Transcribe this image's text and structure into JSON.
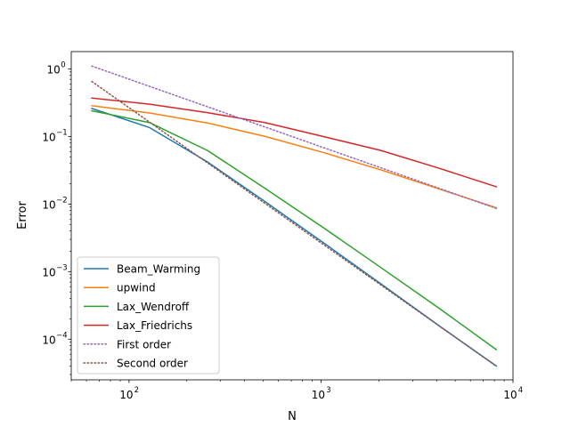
{
  "chart_data": {
    "type": "line",
    "title": "",
    "xlabel": "N",
    "ylabel": "Error",
    "xscale": "log",
    "yscale": "log",
    "xlim": [
      50,
      10000
    ],
    "ylim": [
      2.5e-05,
      1.8
    ],
    "xticks": [
      {
        "value": 100,
        "base": "10",
        "exp": "2"
      },
      {
        "value": 1000,
        "base": "10",
        "exp": "3"
      },
      {
        "value": 10000,
        "base": "10",
        "exp": "4"
      }
    ],
    "yticks": [
      {
        "value": 0.0001,
        "base": "10",
        "exp": "−4"
      },
      {
        "value": 0.001,
        "base": "10",
        "exp": "−3"
      },
      {
        "value": 0.01,
        "base": "10",
        "exp": "−2"
      },
      {
        "value": 0.1,
        "base": "10",
        "exp": "−1"
      },
      {
        "value": 1,
        "base": "10",
        "exp": "0"
      }
    ],
    "grid": false,
    "legend_position": "lower-left",
    "x": [
      64,
      128,
      256,
      512,
      1024,
      2048,
      4096,
      8192
    ],
    "series": [
      {
        "name": "Beam_Warming",
        "color": "#1f77b4",
        "style": "solid",
        "values": [
          0.26,
          0.135,
          0.042,
          0.0108,
          0.0027,
          0.00066,
          0.00016,
          4e-05
        ]
      },
      {
        "name": "upwind",
        "color": "#ff7f0e",
        "style": "solid",
        "values": [
          0.285,
          0.222,
          0.158,
          0.1,
          0.058,
          0.032,
          0.0168,
          0.0088
        ]
      },
      {
        "name": "Lax_Wendroff",
        "color": "#2ca02c",
        "style": "solid",
        "values": [
          0.24,
          0.16,
          0.062,
          0.017,
          0.0045,
          0.00115,
          0.00029,
          7e-05
        ]
      },
      {
        "name": "Lax_Friedrichs",
        "color": "#d62728",
        "style": "solid",
        "values": [
          0.37,
          0.3,
          0.225,
          0.16,
          0.1,
          0.062,
          0.034,
          0.018
        ]
      },
      {
        "name": "First order",
        "color": "#9467bd",
        "style": "dotted",
        "values": [
          1.1,
          0.55,
          0.275,
          0.1375,
          0.06875,
          0.034375,
          0.0171875,
          0.00859
        ]
      },
      {
        "name": "Second order",
        "color": "#8c564b",
        "style": "dotted",
        "values": [
          0.65,
          0.1625,
          0.040625,
          0.01016,
          0.00254,
          0.000635,
          0.000159,
          3.97e-05
        ]
      }
    ]
  }
}
